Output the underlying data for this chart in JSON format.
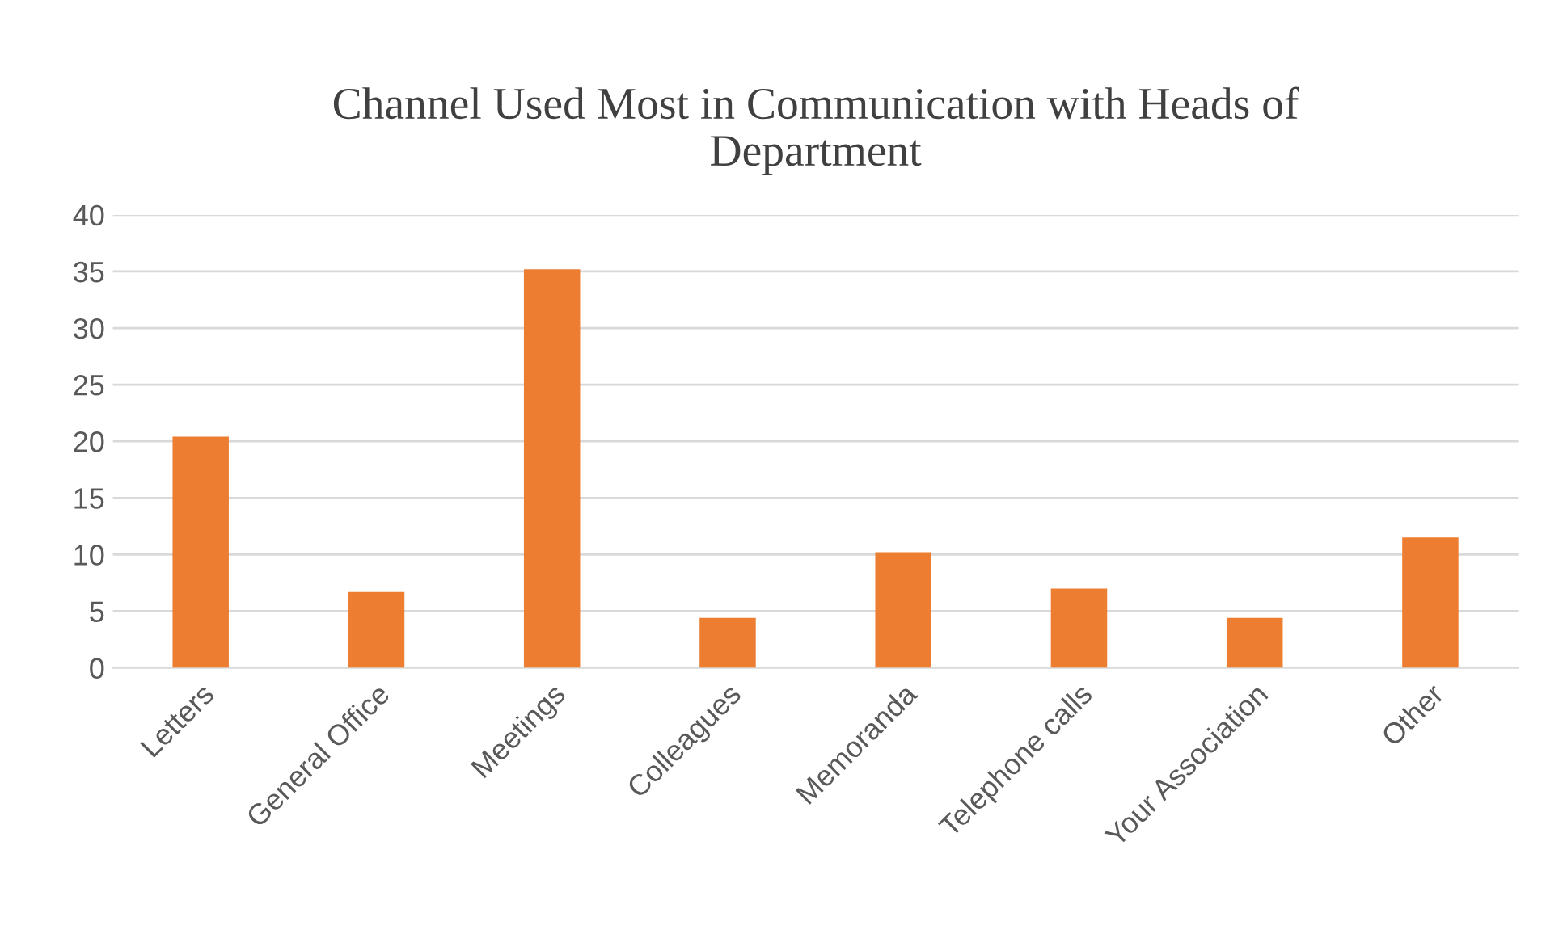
{
  "chart_data": {
    "type": "bar",
    "title": "Channel Used Most in Communication with Heads of\nDepartment",
    "categories": [
      "Letters",
      "General Office",
      "Meetings",
      "Colleagues",
      "Memoranda",
      "Telephone calls",
      "Your Association",
      "Other"
    ],
    "values": [
      20.4,
      6.7,
      35.2,
      4.4,
      10.2,
      7.0,
      4.4,
      11.5
    ],
    "color": "#ed7d31",
    "ylim": [
      0,
      40
    ],
    "yticks": [
      0,
      5,
      10,
      15,
      20,
      25,
      30,
      35,
      40
    ],
    "grid": "y"
  }
}
